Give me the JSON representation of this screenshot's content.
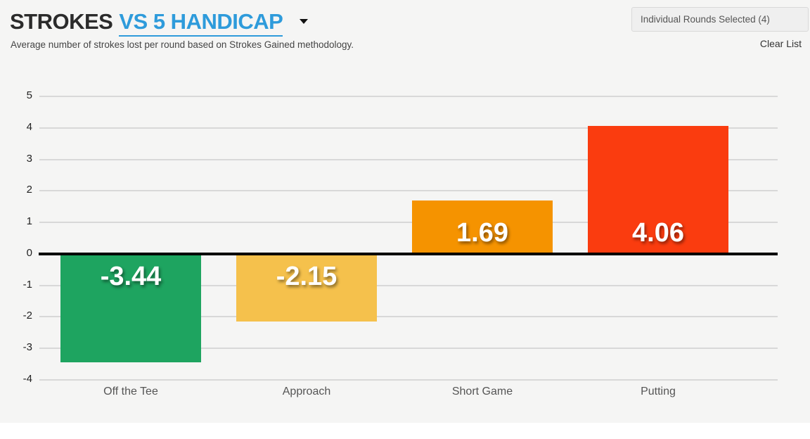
{
  "header": {
    "title_primary": "STROKES",
    "title_secondary": "VS 5 HANDICAP",
    "caret_icon": "caret-down",
    "subtitle": "Average number of strokes lost per round based on Strokes Gained methodology.",
    "rounds_button": "Individual Rounds Selected (4)",
    "clear_list": "Clear List"
  },
  "colors": {
    "accent_blue": "#2e9bdb",
    "panel_background": "#f5f5f4",
    "grid": "#d8d8d8",
    "zero_line": "#000000",
    "bar_green": "#1ea460",
    "bar_amber": "#f5c14c",
    "bar_orange": "#f59300",
    "bar_red": "#fa3c0f"
  },
  "chart_data": {
    "type": "bar",
    "title": "STROKES VS 5 HANDICAP",
    "subtitle": "Average number of strokes lost per round based on Strokes Gained methodology.",
    "categories": [
      "Off the Tee",
      "Approach",
      "Short Game",
      "Putting"
    ],
    "values": [
      -3.44,
      -2.15,
      1.69,
      4.06
    ],
    "value_labels": [
      "-3.44",
      "-2.15",
      "1.69",
      "4.06"
    ],
    "bar_colors": [
      "#1ea460",
      "#f5c14c",
      "#f59300",
      "#fa3c0f"
    ],
    "xlabel": "",
    "ylabel": "",
    "ylim": [
      -4,
      5
    ],
    "yticks": [
      5,
      4,
      3,
      2,
      1,
      0,
      -1,
      -2,
      -3,
      -4
    ],
    "grid": true,
    "zero_line": true,
    "legend": false
  }
}
